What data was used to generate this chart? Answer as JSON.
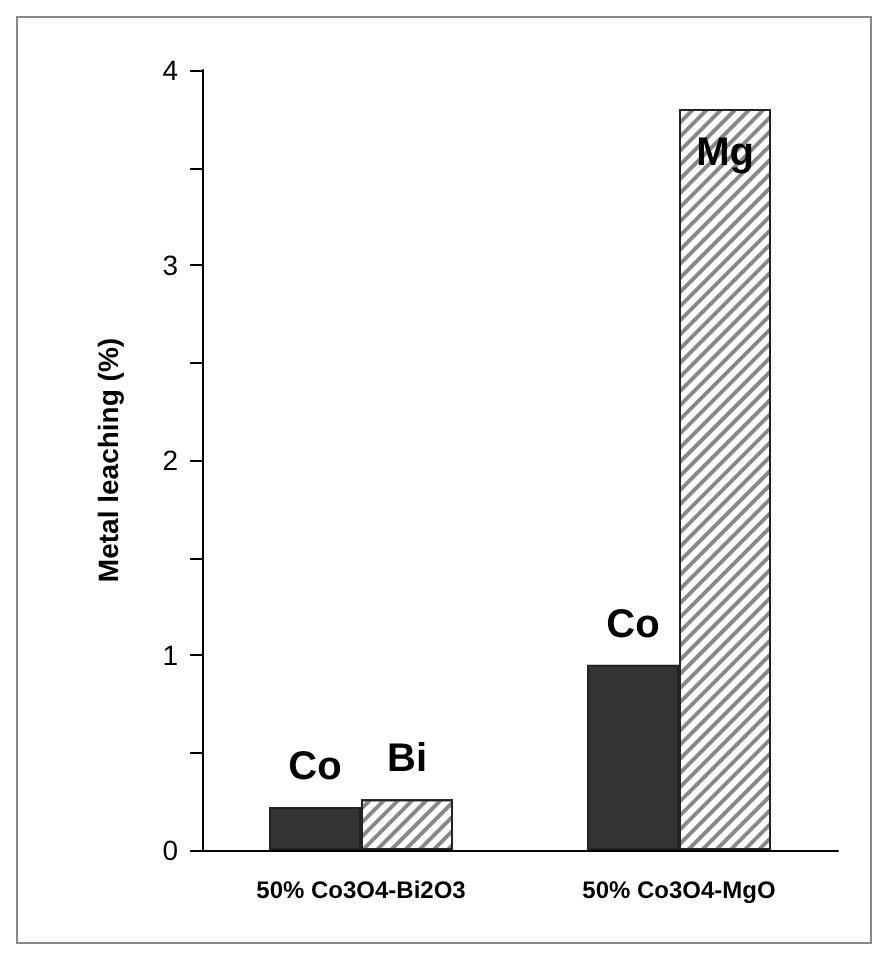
{
  "chart_data": {
    "type": "bar",
    "ylabel": "Metal leaching (%)",
    "categories": [
      "50% Co3O4-Bi2O3",
      "50% Co3O4-MgO"
    ],
    "series": [
      {
        "color": "#333333",
        "values": [
          0.22,
          0.95
        ],
        "value_labels": [
          "Co",
          "Co"
        ]
      },
      {
        "color": "#ffffff",
        "values": [
          0.26,
          3.8
        ],
        "value_labels": [
          "Bi",
          "Mg"
        ]
      }
    ],
    "ylim": [
      0,
      4
    ],
    "yticks": [
      0,
      1,
      2,
      3,
      4
    ],
    "grid": false
  }
}
